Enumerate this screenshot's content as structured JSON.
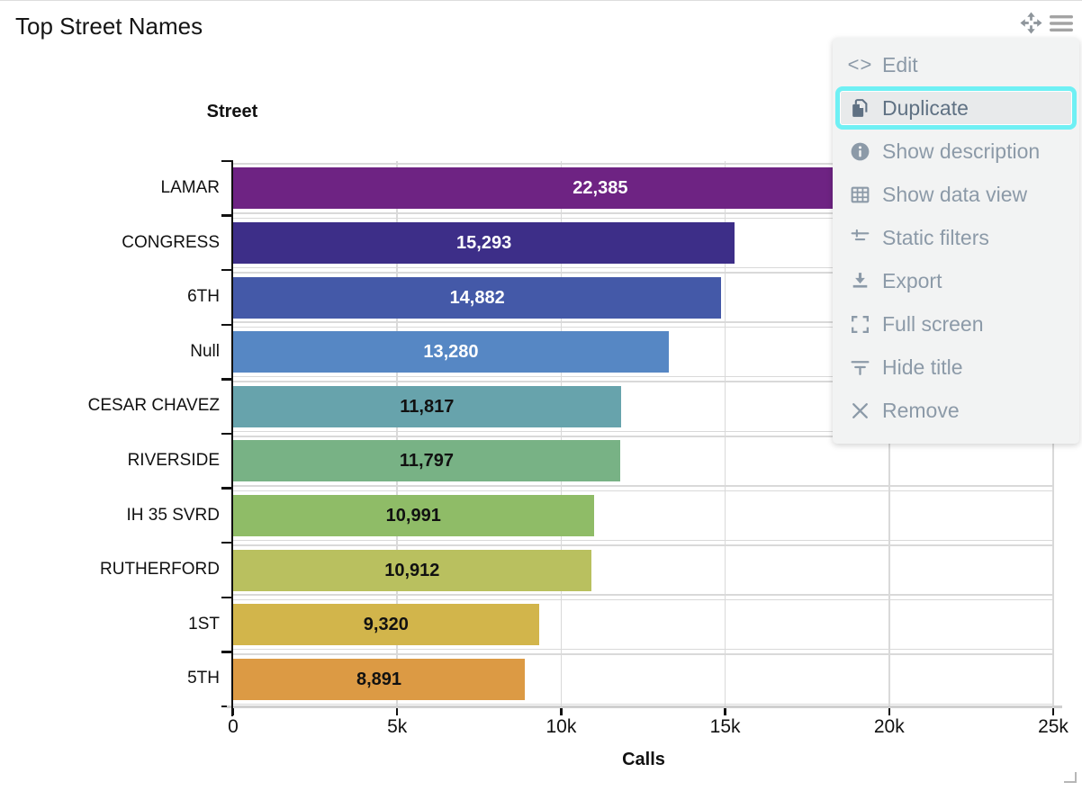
{
  "widget": {
    "title": "Top Street Names"
  },
  "toolbar": {
    "icons": [
      {
        "name": "move-icon"
      },
      {
        "name": "hamburger-icon"
      }
    ]
  },
  "menu": {
    "items": [
      {
        "label": "Edit",
        "icon": "code-icon",
        "highlighted": false
      },
      {
        "label": "Duplicate",
        "icon": "duplicate-icon",
        "highlighted": true
      },
      {
        "label": "Show description",
        "icon": "info-icon",
        "highlighted": false
      },
      {
        "label": "Show data view",
        "icon": "table-icon",
        "highlighted": false
      },
      {
        "label": "Static filters",
        "icon": "filter-icon",
        "highlighted": false
      },
      {
        "label": "Export",
        "icon": "export-icon",
        "highlighted": false
      },
      {
        "label": "Full screen",
        "icon": "fullscreen-icon",
        "highlighted": false
      },
      {
        "label": "Hide title",
        "icon": "hide-title-icon",
        "highlighted": false
      },
      {
        "label": "Remove",
        "icon": "remove-icon",
        "highlighted": false
      }
    ]
  },
  "colors": {
    "menu_highlight_border": "#6ff0f4",
    "menu_highlight_bg": "#e8eaeb",
    "menu_text": "#8c9aa8",
    "menu_text_active": "#5f7183",
    "menu_bg": "#f2f3f3",
    "grid": "#d9d9d9",
    "axis_baseline": "#cfcfcf",
    "axis_line": "#111111"
  },
  "chart_data": {
    "type": "bar",
    "orientation": "horizontal",
    "title": "Top Street Names",
    "xlabel": "Calls",
    "ylabel": "Street",
    "categories": [
      "LAMAR",
      "CONGRESS",
      "6TH",
      "Null",
      "CESAR CHAVEZ",
      "RIVERSIDE",
      "IH 35 SVRD",
      "RUTHERFORD",
      "1ST",
      "5TH"
    ],
    "values": [
      22385,
      15293,
      14882,
      13280,
      11817,
      11797,
      10991,
      10912,
      9320,
      8891
    ],
    "value_labels": [
      "22,385",
      "15,293",
      "14,882",
      "13,280",
      "11,817",
      "11,797",
      "10,991",
      "10,912",
      "9,320",
      "8,891"
    ],
    "bar_colors": [
      "#6e2383",
      "#3d2e88",
      "#4459a8",
      "#5687c4",
      "#67a3ac",
      "#78b285",
      "#8fbc67",
      "#b9c05f",
      "#d2b54b",
      "#dc9a44"
    ],
    "value_text_colors": [
      "#ffffff",
      "#ffffff",
      "#ffffff",
      "#ffffff",
      "#111111",
      "#111111",
      "#111111",
      "#111111",
      "#111111",
      "#111111"
    ],
    "xlim": [
      0,
      25000
    ],
    "x_tick_labels": [
      "0",
      "5k",
      "10k",
      "15k",
      "20k",
      "25k"
    ],
    "grid": true,
    "legend": false
  }
}
